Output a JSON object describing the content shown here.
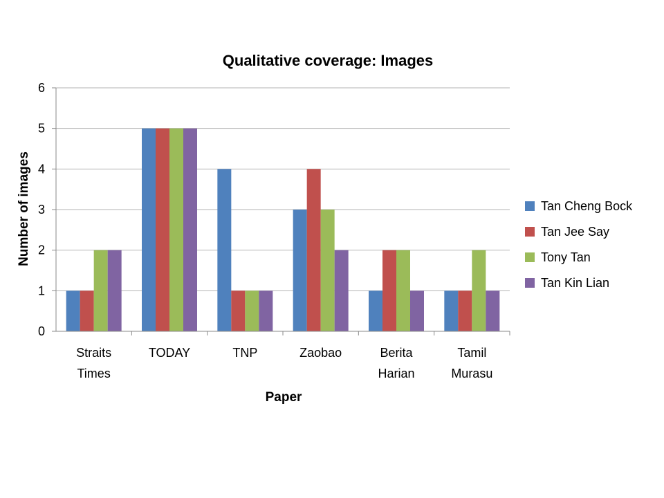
{
  "chart_data": {
    "type": "bar",
    "title": "Qualitative coverage: Images",
    "xlabel": "Paper",
    "ylabel": "Number of images",
    "categories": [
      [
        "Straits",
        "Times"
      ],
      [
        "TODAY"
      ],
      [
        "TNP"
      ],
      [
        "Zaobao"
      ],
      [
        "Berita",
        "Harian"
      ],
      [
        "Tamil",
        "Murasu"
      ]
    ],
    "ylim": [
      0,
      6
    ],
    "yticks": [
      0,
      1,
      2,
      3,
      4,
      5,
      6
    ],
    "grid": true,
    "legend_position": "right",
    "series": [
      {
        "name": "Tan Cheng Bock",
        "color": "#4f81bd",
        "values": [
          1,
          5,
          4,
          3,
          1,
          1
        ]
      },
      {
        "name": "Tan Jee Say",
        "color": "#c0504d",
        "values": [
          1,
          5,
          1,
          4,
          2,
          1
        ]
      },
      {
        "name": "Tony Tan",
        "color": "#9bbb59",
        "values": [
          2,
          5,
          1,
          3,
          2,
          2
        ]
      },
      {
        "name": "Tan Kin Lian",
        "color": "#8064a2",
        "values": [
          2,
          5,
          1,
          2,
          1,
          1
        ]
      }
    ]
  }
}
